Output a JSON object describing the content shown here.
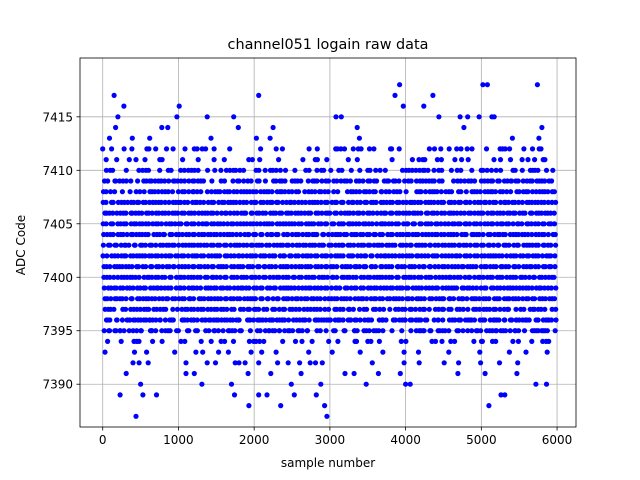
{
  "chart_data": {
    "type": "scatter",
    "title": "channel051 logain raw data",
    "xlabel": "sample number",
    "ylabel": "ADC Code",
    "xlim": [
      -300,
      6250
    ],
    "ylim": [
      7386,
      7420.5
    ],
    "xticks": [
      0,
      1000,
      2000,
      3000,
      4000,
      5000,
      6000
    ],
    "yticks": [
      7390,
      7395,
      7400,
      7405,
      7410,
      7415
    ],
    "grid": true,
    "marker": "circle",
    "color": "#0000ff",
    "series": [
      {
        "n_samples": 6000,
        "points": [
          [
            440,
            7387
          ],
          [
            2960,
            7387
          ],
          [
            1930,
            7388
          ],
          [
            2350,
            7388
          ],
          [
            2930,
            7388
          ],
          [
            5100,
            7388
          ],
          [
            230,
            7389
          ],
          [
            530,
            7389
          ],
          [
            710,
            7389
          ],
          [
            1740,
            7389
          ],
          [
            2060,
            7389
          ],
          [
            2170,
            7389
          ],
          [
            2530,
            7389
          ],
          [
            2820,
            7389
          ],
          [
            5260,
            7389
          ],
          [
            5310,
            7389
          ],
          [
            500,
            7390
          ],
          [
            1310,
            7390
          ],
          [
            1700,
            7390
          ],
          [
            2490,
            7390
          ],
          [
            2880,
            7390
          ],
          [
            3480,
            7390
          ],
          [
            4000,
            7390
          ],
          [
            4060,
            7390
          ],
          [
            5720,
            7390
          ],
          [
            5860,
            7390
          ],
          [
            310,
            7391
          ],
          [
            1100,
            7391
          ],
          [
            1210,
            7391
          ],
          [
            1920,
            7391
          ],
          [
            2220,
            7391
          ],
          [
            2620,
            7391
          ],
          [
            3200,
            7391
          ],
          [
            3320,
            7391
          ],
          [
            3640,
            7391
          ],
          [
            3930,
            7391
          ],
          [
            4690,
            7391
          ],
          [
            5050,
            7391
          ],
          [
            5470,
            7391
          ],
          [
            400,
            7392
          ],
          [
            480,
            7392
          ],
          [
            600,
            7392
          ],
          [
            1100,
            7392
          ],
          [
            1380,
            7392
          ],
          [
            1490,
            7392
          ],
          [
            1750,
            7392
          ],
          [
            1800,
            7392
          ],
          [
            1880,
            7392
          ],
          [
            2060,
            7392
          ],
          [
            2310,
            7392
          ],
          [
            2450,
            7392
          ],
          [
            2600,
            7392
          ],
          [
            2740,
            7392
          ],
          [
            2810,
            7392
          ],
          [
            2900,
            7392
          ],
          [
            3560,
            7392
          ],
          [
            3980,
            7392
          ],
          [
            4180,
            7392
          ],
          [
            4510,
            7392
          ],
          [
            4700,
            7392
          ],
          [
            4990,
            7392
          ],
          [
            5240,
            7392
          ],
          [
            5480,
            7392
          ],
          [
            30,
            7393
          ],
          [
            420,
            7393
          ],
          [
            580,
            7393
          ],
          [
            950,
            7393
          ],
          [
            1230,
            7393
          ],
          [
            1320,
            7393
          ],
          [
            1530,
            7393
          ],
          [
            1660,
            7393
          ],
          [
            1960,
            7393
          ],
          [
            2100,
            7393
          ],
          [
            2290,
            7393
          ],
          [
            2720,
            7393
          ],
          [
            3030,
            7393
          ],
          [
            3400,
            7393
          ],
          [
            3700,
            7393
          ],
          [
            3980,
            7393
          ],
          [
            4170,
            7393
          ],
          [
            4570,
            7393
          ],
          [
            4980,
            7393
          ],
          [
            5370,
            7393
          ],
          [
            5590,
            7393
          ],
          [
            5870,
            7393
          ],
          [
            20,
            7395
          ],
          [
            80,
            7395
          ],
          [
            160,
            7395
          ],
          [
            230,
            7395
          ],
          [
            350,
            7395
          ],
          [
            510,
            7395
          ],
          [
            650,
            7395
          ],
          [
            780,
            7395
          ],
          [
            890,
            7395
          ],
          [
            1000,
            7395
          ],
          [
            1120,
            7395
          ],
          [
            1250,
            7395
          ],
          [
            1360,
            7395
          ],
          [
            1470,
            7395
          ],
          [
            1590,
            7395
          ],
          [
            1710,
            7395
          ],
          [
            1830,
            7395
          ],
          [
            1950,
            7395
          ],
          [
            2080,
            7395
          ],
          [
            2200,
            7395
          ],
          [
            2330,
            7395
          ],
          [
            2450,
            7395
          ],
          [
            2580,
            7395
          ],
          [
            2700,
            7395
          ],
          [
            2830,
            7395
          ],
          [
            2950,
            7395
          ],
          [
            3070,
            7395
          ],
          [
            3200,
            7395
          ],
          [
            3330,
            7395
          ],
          [
            3450,
            7395
          ],
          [
            3580,
            7395
          ],
          [
            3700,
            7395
          ],
          [
            3820,
            7395
          ],
          [
            3950,
            7395
          ],
          [
            4070,
            7395
          ],
          [
            4200,
            7395
          ],
          [
            4320,
            7395
          ],
          [
            4450,
            7395
          ],
          [
            4570,
            7395
          ],
          [
            4700,
            7395
          ],
          [
            4820,
            7395
          ],
          [
            4950,
            7395
          ],
          [
            5070,
            7395
          ],
          [
            5200,
            7395
          ],
          [
            5320,
            7395
          ],
          [
            5450,
            7395
          ],
          [
            5570,
            7395
          ],
          [
            5700,
            7395
          ],
          [
            5820,
            7395
          ],
          [
            60,
            7396
          ],
          [
            190,
            7396
          ],
          [
            330,
            7396
          ],
          [
            470,
            7396
          ],
          [
            620,
            7396
          ],
          [
            760,
            7396
          ],
          [
            910,
            7396
          ],
          [
            1060,
            7396
          ],
          [
            1200,
            7396
          ],
          [
            1350,
            7396
          ],
          [
            1500,
            7396
          ],
          [
            1640,
            7396
          ],
          [
            1790,
            7396
          ],
          [
            1940,
            7396
          ],
          [
            2080,
            7396
          ],
          [
            2230,
            7396
          ],
          [
            2380,
            7396
          ],
          [
            2520,
            7396
          ],
          [
            2670,
            7396
          ],
          [
            2820,
            7396
          ],
          [
            2960,
            7396
          ],
          [
            3110,
            7396
          ],
          [
            3260,
            7396
          ],
          [
            3400,
            7396
          ],
          [
            3550,
            7396
          ],
          [
            3700,
            7396
          ],
          [
            3840,
            7396
          ],
          [
            3990,
            7396
          ],
          [
            4140,
            7396
          ],
          [
            4280,
            7396
          ],
          [
            4430,
            7396
          ],
          [
            4580,
            7396
          ],
          [
            4720,
            7396
          ],
          [
            4870,
            7396
          ],
          [
            5020,
            7396
          ],
          [
            5160,
            7396
          ],
          [
            5310,
            7396
          ],
          [
            5460,
            7396
          ],
          [
            5600,
            7396
          ],
          [
            5750,
            7396
          ],
          [
            5890,
            7396
          ],
          [
            90,
            7413
          ],
          [
            170,
            7414
          ],
          [
            200,
            7415
          ],
          [
            150,
            7417
          ],
          [
            280,
            7416
          ],
          [
            390,
            7413
          ],
          [
            620,
            7413
          ],
          [
            780,
            7414
          ],
          [
            860,
            7414
          ],
          [
            980,
            7415
          ],
          [
            1010,
            7416
          ],
          [
            1380,
            7415
          ],
          [
            1430,
            7413
          ],
          [
            1730,
            7415
          ],
          [
            1790,
            7414
          ],
          [
            2030,
            7413
          ],
          [
            2060,
            7417
          ],
          [
            2210,
            7413
          ],
          [
            2250,
            7414
          ],
          [
            3080,
            7415
          ],
          [
            3150,
            7415
          ],
          [
            3360,
            7414
          ],
          [
            3390,
            7413
          ],
          [
            3860,
            7417
          ],
          [
            3920,
            7418
          ],
          [
            3970,
            7416
          ],
          [
            4240,
            7416
          ],
          [
            4360,
            7417
          ],
          [
            4440,
            7415
          ],
          [
            4720,
            7415
          ],
          [
            4770,
            7414
          ],
          [
            4820,
            7415
          ],
          [
            4970,
            7415
          ],
          [
            5020,
            7418
          ],
          [
            5080,
            7418
          ],
          [
            5140,
            7415
          ],
          [
            5170,
            7415
          ],
          [
            5410,
            7413
          ],
          [
            5740,
            7418
          ],
          [
            5800,
            7414
          ],
          [
            5760,
            7413
          ]
        ],
        "dense_band": [
          7394,
          7412
        ]
      }
    ]
  }
}
